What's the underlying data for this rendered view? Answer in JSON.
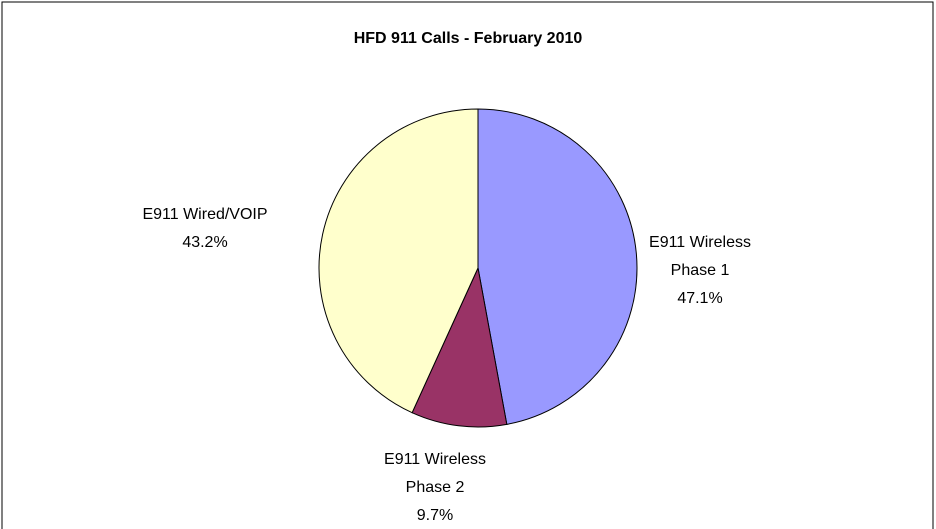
{
  "chart_data": {
    "type": "pie",
    "title": "HFD 911 Calls - February 2010",
    "categories": [
      "E911 Wireless Phase 1",
      "E911 Wireless Phase 2",
      "E911 Wired/VOIP"
    ],
    "values": [
      47.1,
      9.7,
      43.2
    ],
    "value_labels": [
      "47.1%",
      "9.7%",
      "43.2%"
    ],
    "colors": [
      "#9999ff",
      "#993366",
      "#ffffcc"
    ]
  }
}
